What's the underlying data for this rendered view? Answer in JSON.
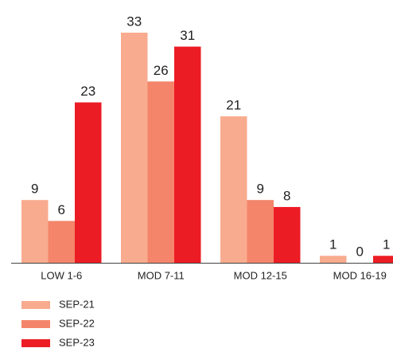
{
  "chart_data": {
    "type": "bar",
    "categories": [
      "LOW 1-6",
      "MOD 7-11",
      "MOD 12-15",
      "MOD 16-19"
    ],
    "series": [
      {
        "name": "SEP-21",
        "color": "#f9ab8f",
        "values": [
          9,
          33,
          21,
          1
        ]
      },
      {
        "name": "SEP-22",
        "color": "#f4856a",
        "values": [
          6,
          26,
          9,
          0
        ]
      },
      {
        "name": "SEP-23",
        "color": "#ec1c24",
        "values": [
          23,
          31,
          8,
          1
        ]
      }
    ]
  }
}
